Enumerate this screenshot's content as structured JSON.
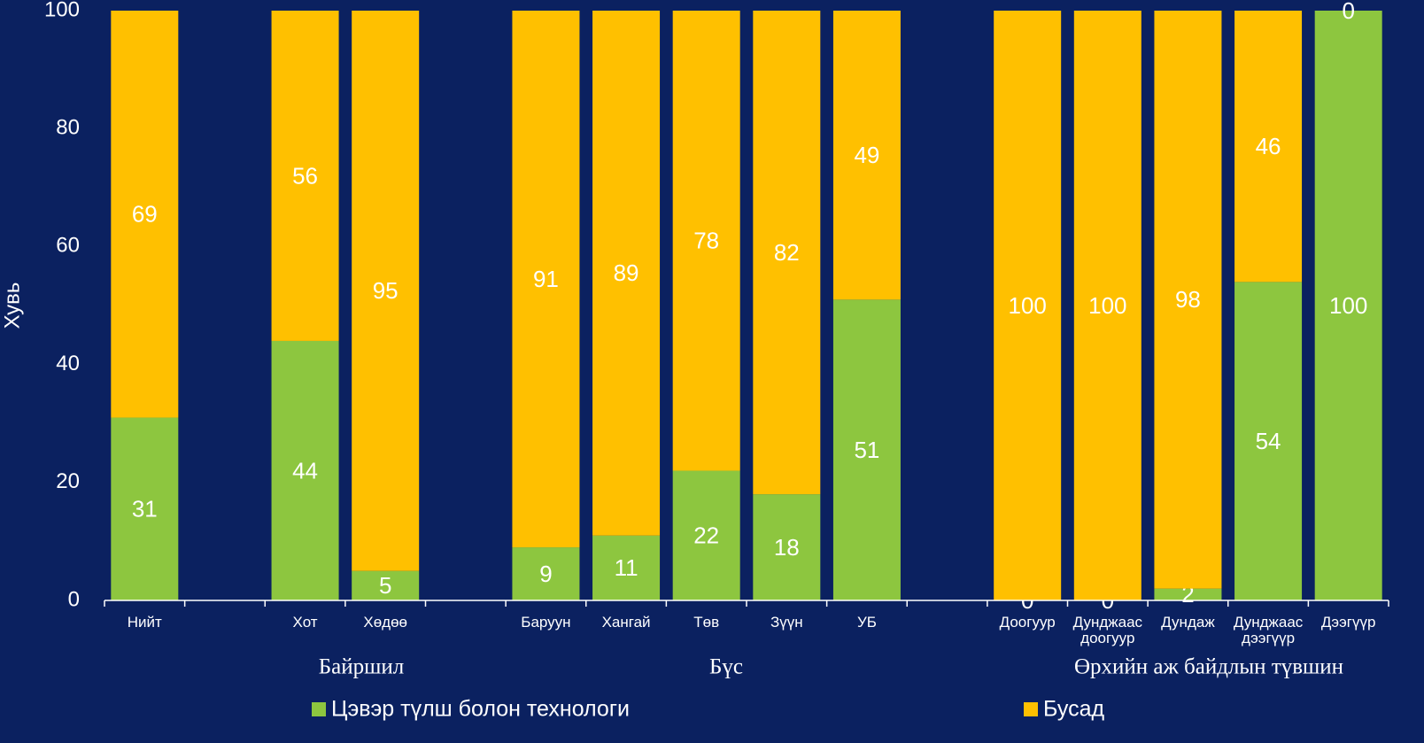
{
  "chart_data": {
    "type": "stacked_bar",
    "y_label": "Хувь",
    "categories": [
      "Нийт",
      null,
      "Хот",
      "Хөдөө",
      null,
      "Баруун",
      "Хангай",
      "Төв",
      "Зүүн",
      "УБ",
      null,
      "Доогуур",
      "Дунджаас\nдоогуур",
      "Дундаж",
      "Дунджаас\nдээгүүр",
      "Дээгүүр"
    ],
    "group_labels": [
      "Байршил",
      "Бүс",
      "Өрхийн аж байдлын түвшин"
    ],
    "series": [
      {
        "name": "Цэвэр түлш болон технологи",
        "color": "#8dc63f",
        "values": [
          31,
          null,
          44,
          5,
          null,
          9,
          11,
          22,
          18,
          51,
          null,
          0,
          0,
          2,
          54,
          100
        ]
      },
      {
        "name": "Бусад",
        "color": "#ffc000",
        "values": [
          69,
          null,
          56,
          95,
          null,
          91,
          89,
          78,
          82,
          49,
          null,
          100,
          100,
          98,
          46,
          0
        ]
      }
    ],
    "ylim": [
      0,
      100
    ],
    "yticks": [
      0,
      20,
      40,
      60,
      80,
      100
    ],
    "grid": false,
    "legend": "bottom"
  }
}
